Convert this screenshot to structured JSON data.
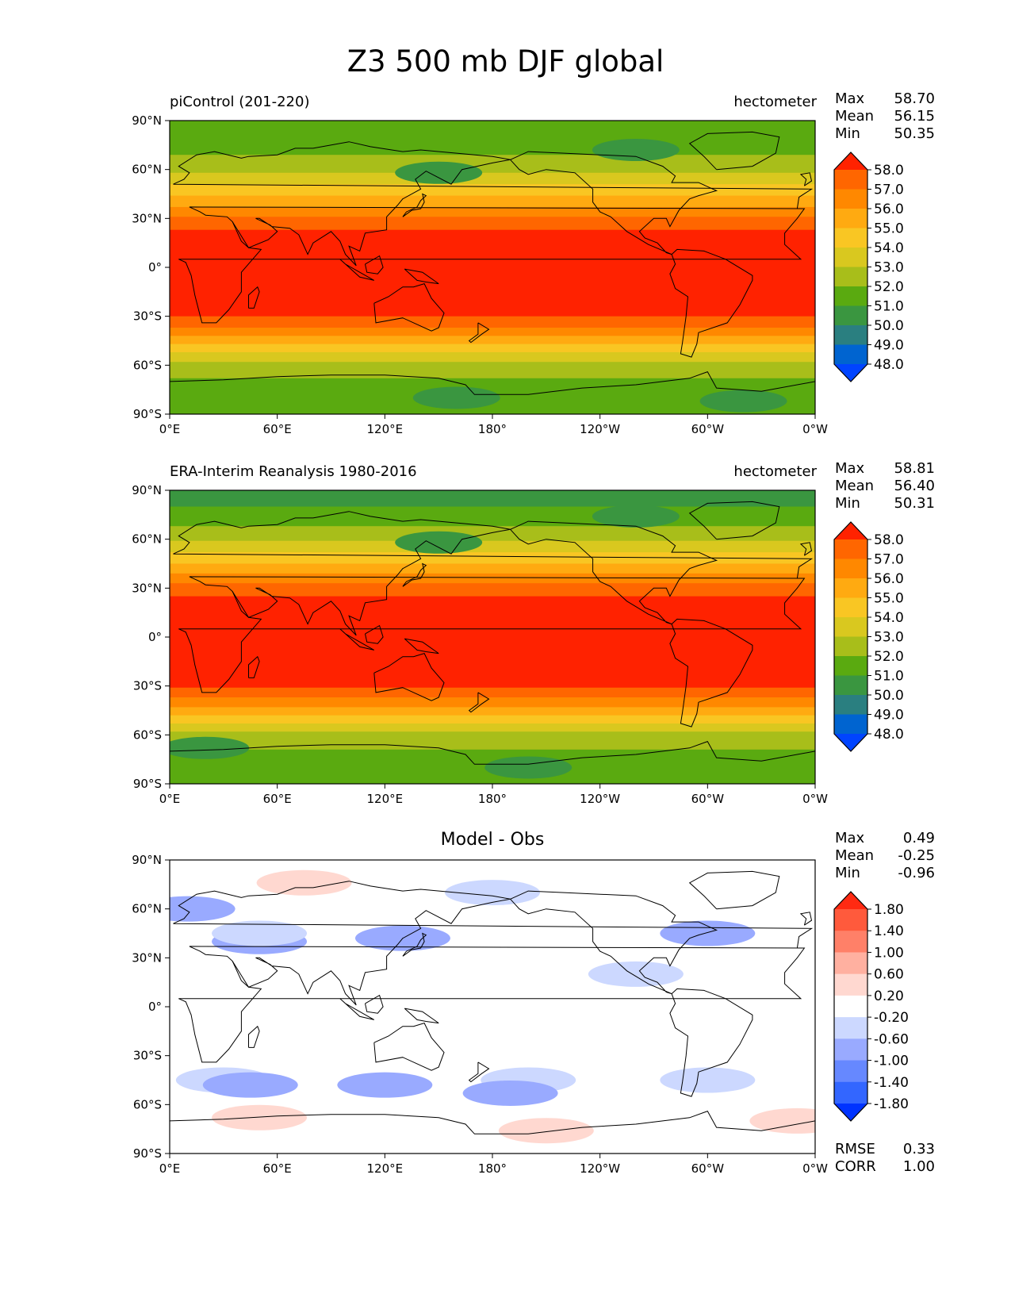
{
  "title": "Z3 500 mb DJF global",
  "map_axes": {
    "lat_ticks": [
      "90°N",
      "60°N",
      "30°N",
      "0°",
      "30°S",
      "60°S",
      "90°S"
    ],
    "lon_ticks": [
      "0°E",
      "60°E",
      "120°E",
      "180°",
      "120°W",
      "60°W",
      "0°W"
    ]
  },
  "panels": [
    {
      "id": "model",
      "left_label": "piControl (201-220)",
      "right_label": "hectometer",
      "center_label": "",
      "stats": [
        {
          "label": "Max",
          "value": "58.70"
        },
        {
          "label": "Mean",
          "value": "56.15"
        },
        {
          "label": "Min",
          "value": "50.35"
        }
      ],
      "colorbar": {
        "labels": [
          "58.0",
          "57.0",
          "56.0",
          "55.0",
          "54.0",
          "53.0",
          "52.0",
          "51.0",
          "50.0",
          "49.0",
          "48.0"
        ],
        "colors": [
          "#ff2200",
          "#ff6600",
          "#ff8800",
          "#ffaa11",
          "#f9c623",
          "#d9c81f",
          "#a8be1a",
          "#5aaa10",
          "#3a9640",
          "#2a7f80",
          "#0064d0",
          "#0044ff"
        ]
      },
      "zonal_field": {
        "lat": [
          90,
          80,
          72,
          66,
          60,
          55,
          50,
          45,
          40,
          35,
          30,
          25,
          20,
          0,
          -20,
          -30,
          -35,
          -40,
          -45,
          -50,
          -55,
          -60,
          -70,
          -90
        ],
        "value": [
          51.2,
          51.3,
          51.8,
          52.2,
          52.8,
          53.4,
          54.1,
          54.8,
          55.5,
          56.3,
          57.2,
          57.8,
          58.4,
          58.6,
          58.4,
          58.0,
          57.3,
          56.4,
          55.4,
          54.4,
          53.4,
          52.6,
          51.8,
          51.5
        ]
      },
      "blobs": [
        {
          "lon": 150,
          "lat": 58,
          "value": 50.6
        },
        {
          "lon": 260,
          "lat": 72,
          "value": 50.5
        },
        {
          "lon": 160,
          "lat": -80,
          "value": 50.8
        },
        {
          "lon": 320,
          "lat": -82,
          "value": 50.8
        }
      ]
    },
    {
      "id": "obs",
      "left_label": "ERA-Interim Reanalysis 1980-2016",
      "right_label": "hectometer",
      "center_label": "",
      "stats": [
        {
          "label": "Max",
          "value": "58.81"
        },
        {
          "label": "Mean",
          "value": "56.40"
        },
        {
          "label": "Min",
          "value": "50.31"
        }
      ],
      "colorbar": {
        "labels": [
          "58.0",
          "57.0",
          "56.0",
          "55.0",
          "54.0",
          "53.0",
          "52.0",
          "51.0",
          "50.0",
          "49.0",
          "48.0"
        ],
        "colors": [
          "#ff2200",
          "#ff6600",
          "#ff8800",
          "#ffaa11",
          "#f9c623",
          "#d9c81f",
          "#a8be1a",
          "#5aaa10",
          "#3a9640",
          "#2a7f80",
          "#0064d0",
          "#0044ff"
        ]
      },
      "zonal_field": {
        "lat": [
          90,
          80,
          72,
          66,
          60,
          55,
          50,
          45,
          40,
          35,
          30,
          25,
          20,
          0,
          -20,
          -30,
          -35,
          -40,
          -45,
          -50,
          -55,
          -60,
          -70,
          -90
        ],
        "value": [
          50.8,
          51.0,
          51.6,
          52.2,
          52.9,
          53.6,
          54.3,
          55.0,
          55.8,
          56.6,
          57.4,
          58.0,
          58.5,
          58.7,
          58.5,
          58.1,
          57.4,
          56.5,
          55.5,
          54.5,
          53.5,
          52.7,
          51.9,
          51.5
        ]
      },
      "blobs": [
        {
          "lon": 150,
          "lat": 58,
          "value": 50.6
        },
        {
          "lon": 260,
          "lat": 74,
          "value": 50.4
        },
        {
          "lon": 20,
          "lat": -68,
          "value": 50.8
        },
        {
          "lon": 200,
          "lat": -80,
          "value": 50.6
        }
      ]
    },
    {
      "id": "diff",
      "left_label": "",
      "right_label": "",
      "center_label": "Model - Obs",
      "stats": [
        {
          "label": "Max",
          "value": "0.49"
        },
        {
          "label": "Mean",
          "value": "-0.25"
        },
        {
          "label": "Min",
          "value": "-0.96"
        }
      ],
      "stats_bottom": [
        {
          "label": "RMSE",
          "value": "0.33"
        },
        {
          "label": "CORR",
          "value": "1.00"
        }
      ],
      "colorbar": {
        "labels": [
          "1.80",
          "1.40",
          "1.00",
          "0.60",
          "0.20",
          "-0.20",
          "-0.60",
          "-1.00",
          "-1.40",
          "-1.80"
        ],
        "colors": [
          "#ff2a12",
          "#ff5a3c",
          "#ff8068",
          "#ffb0a0",
          "#ffd8d0",
          "#ffffff",
          "#ccd8ff",
          "#99aaff",
          "#6688ff",
          "#3366ff",
          "#0033ff"
        ]
      },
      "zonal_field": {
        "lat": [
          90,
          0,
          -90
        ],
        "value": [
          0,
          0,
          0
        ]
      },
      "blobs": [
        {
          "lon": 50,
          "lat": 40,
          "value": -0.7
        },
        {
          "lon": 10,
          "lat": 60,
          "value": -0.7
        },
        {
          "lon": 130,
          "lat": 42,
          "value": -0.7
        },
        {
          "lon": 300,
          "lat": 45,
          "value": -0.7
        },
        {
          "lon": 50,
          "lat": 45,
          "value": -0.4
        },
        {
          "lon": 180,
          "lat": 70,
          "value": -0.4
        },
        {
          "lon": 260,
          "lat": 20,
          "value": -0.4
        },
        {
          "lon": 30,
          "lat": -45,
          "value": -0.4
        },
        {
          "lon": 200,
          "lat": -45,
          "value": -0.4
        },
        {
          "lon": 300,
          "lat": -45,
          "value": -0.4
        },
        {
          "lon": 45,
          "lat": -48,
          "value": -0.7
        },
        {
          "lon": 120,
          "lat": -48,
          "value": -0.7
        },
        {
          "lon": 190,
          "lat": -53,
          "value": -0.7
        },
        {
          "lon": 75,
          "lat": 76,
          "value": 0.35
        },
        {
          "lon": 50,
          "lat": -68,
          "value": 0.35
        },
        {
          "lon": 210,
          "lat": -76,
          "value": 0.35
        },
        {
          "lon": 350,
          "lat": -70,
          "value": 0.35
        }
      ]
    }
  ]
}
